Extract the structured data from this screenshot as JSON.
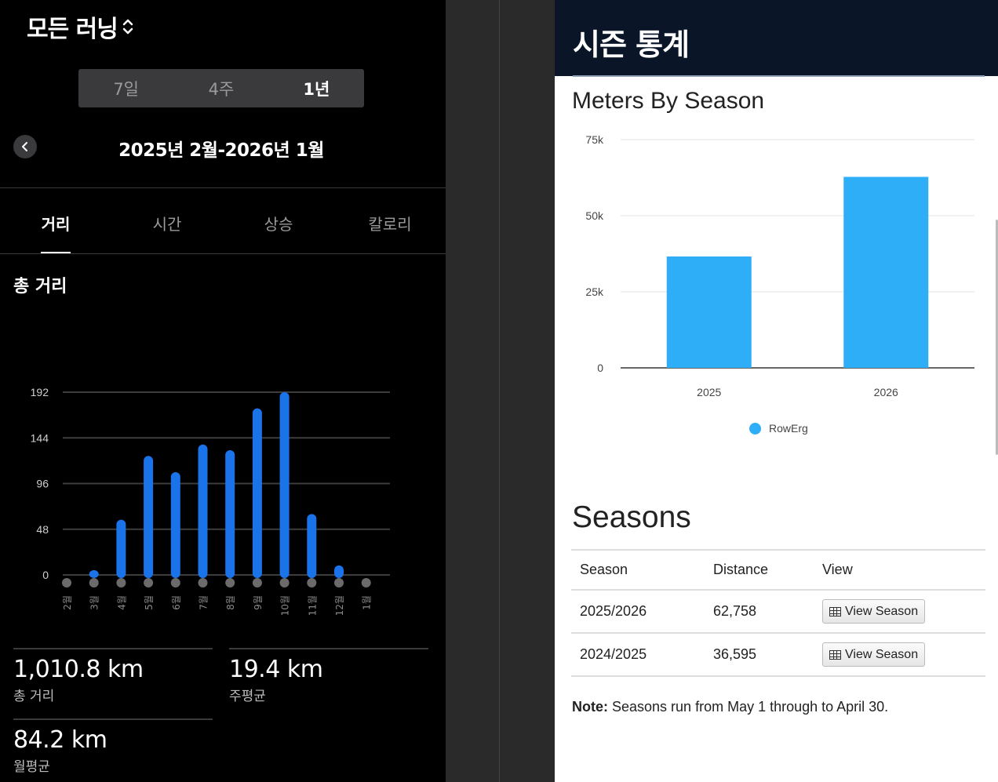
{
  "left": {
    "activity": "모든 러닝",
    "periods": [
      "7일",
      "4주",
      "1년"
    ],
    "active_period": 2,
    "range": "2025년 2월-2026년 1월",
    "tabs": [
      "거리",
      "시간",
      "상승",
      "칼로리"
    ],
    "active_tab": 0,
    "metric_title": "총 거리",
    "stats": [
      {
        "value": "1,010.8 km",
        "label": "총 거리"
      },
      {
        "value": "19.4 km",
        "label": "주평균"
      },
      {
        "value": "84.2 km",
        "label": "월평균"
      }
    ]
  },
  "right": {
    "header_title": "시즌 통계",
    "chart_title": "Meters By Season",
    "legend_label": "RowErg",
    "seasons_title": "Seasons",
    "table": {
      "headers": [
        "Season",
        "Distance",
        "View"
      ],
      "rows": [
        {
          "season": "2025/2026",
          "distance": "62,758",
          "button": "View Season"
        },
        {
          "season": "2024/2025",
          "distance": "36,595",
          "button": "View Season"
        }
      ]
    },
    "note_label": "Note:",
    "note_text": " Seasons run from May 1 through to April 30."
  },
  "colors": {
    "left_bar": "#1a73e8",
    "right_bar": "#2eaef7",
    "header_bg": "#0a1628"
  },
  "chart_data": [
    {
      "type": "bar",
      "categories": [
        "2월",
        "3월",
        "4월",
        "5월",
        "6월",
        "7월",
        "8월",
        "9월",
        "10월",
        "11월",
        "12월",
        "1월"
      ],
      "values": [
        0,
        5,
        58,
        125,
        108,
        137,
        131,
        175,
        192,
        64,
        10,
        0
      ],
      "yticks": [
        "192",
        "144",
        "96",
        "48",
        "0"
      ],
      "ylim": [
        0,
        192
      ],
      "grid": true
    },
    {
      "type": "bar",
      "categories": [
        "2025",
        "2026"
      ],
      "series": [
        {
          "name": "RowErg",
          "values": [
            36595,
            62758
          ]
        }
      ],
      "yticks": [
        "75k",
        "50k",
        "25k",
        "0"
      ],
      "ylim": [
        0,
        75000
      ],
      "grid": true,
      "legend": "bottom"
    }
  ]
}
